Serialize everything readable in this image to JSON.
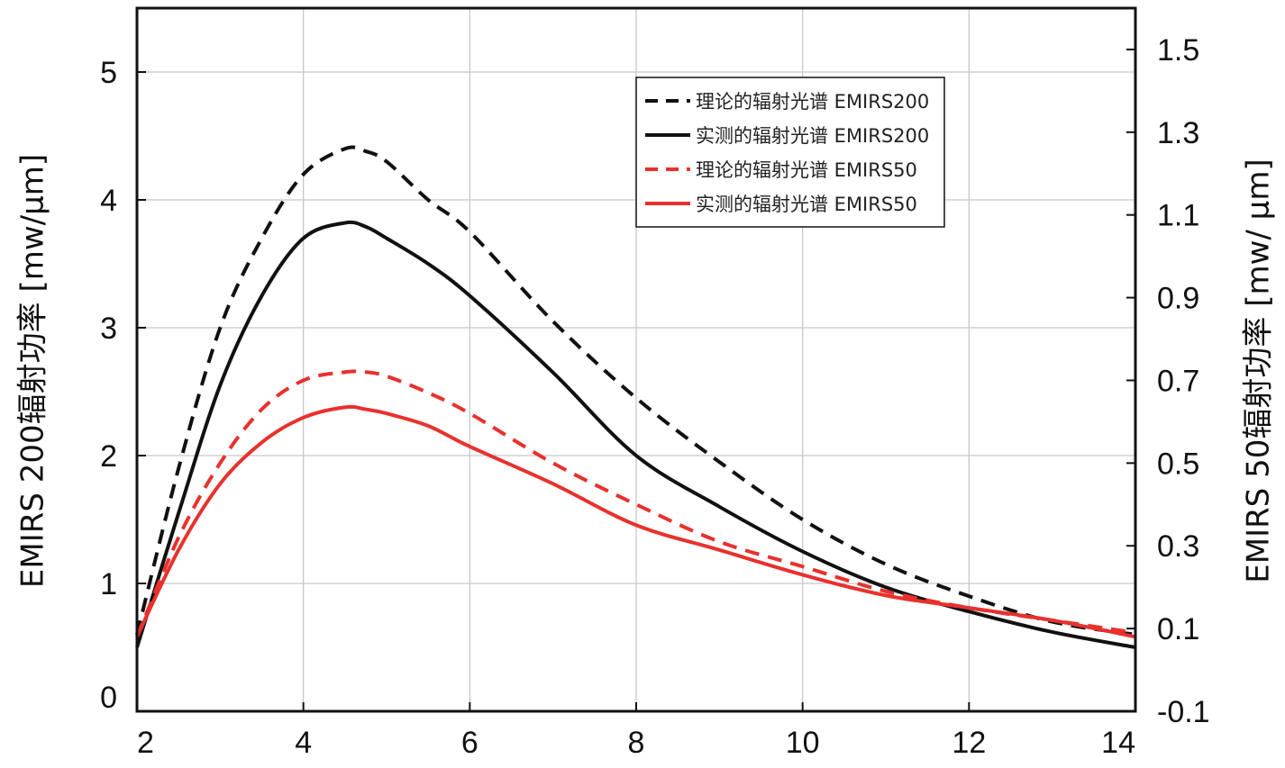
{
  "chart_data": {
    "type": "line",
    "xlabel": "",
    "ylabel_left": "EMIRS 200辐射功率 [mw/μm]",
    "ylabel_right": "EMIRS 50辐射功率 [mw/ μm]",
    "xlim": [
      2,
      14
    ],
    "ylim_left": [
      0,
      5.5
    ],
    "ylim_right": [
      -0.1,
      1.6
    ],
    "x_ticks": [
      "2",
      "4",
      "6",
      "8",
      "10",
      "12",
      "14"
    ],
    "y_ticks_left": [
      "0",
      "1",
      "2",
      "3",
      "4",
      "5"
    ],
    "y_ticks_right": [
      "-0.1",
      "0.1",
      "0.3",
      "0.5",
      "0.7",
      "0.9",
      "1.1",
      "1.3",
      "1.5"
    ],
    "grid": true,
    "legend_position": "top-right",
    "series": [
      {
        "name": "理论的辐射光谱 EMIRS200",
        "color": "#111111",
        "style": "dashed",
        "axis": "left",
        "x": [
          2.0,
          2.5,
          3.0,
          3.5,
          4.0,
          4.5,
          4.75,
          5.0,
          5.5,
          6.0,
          7.0,
          8.0,
          9.0,
          10.0,
          11.0,
          12.0,
          13.0,
          14.0
        ],
        "y": [
          0.6,
          1.9,
          3.0,
          3.7,
          4.2,
          4.4,
          4.38,
          4.3,
          4.0,
          3.75,
          3.05,
          2.45,
          1.95,
          1.5,
          1.15,
          0.9,
          0.7,
          0.6
        ]
      },
      {
        "name": "实测的辐射光谱 EMIRS200",
        "color": "#111111",
        "style": "solid",
        "axis": "left",
        "x": [
          2.0,
          2.5,
          3.0,
          3.5,
          4.0,
          4.5,
          4.75,
          5.0,
          5.5,
          6.0,
          7.0,
          8.0,
          9.0,
          10.0,
          11.0,
          12.0,
          13.0,
          14.0
        ],
        "y": [
          0.5,
          1.55,
          2.55,
          3.25,
          3.7,
          3.82,
          3.79,
          3.7,
          3.5,
          3.25,
          2.65,
          2.0,
          1.6,
          1.25,
          0.97,
          0.78,
          0.62,
          0.5
        ]
      },
      {
        "name": "理论的辐射光谱 EMIRS50",
        "color": "#e8312d",
        "style": "dashed",
        "axis": "right",
        "x": [
          2.0,
          2.5,
          3.0,
          3.5,
          4.0,
          4.5,
          4.75,
          5.0,
          5.5,
          6.0,
          7.0,
          8.0,
          9.0,
          10.0,
          11.0,
          12.0,
          13.0,
          14.0
        ],
        "y": [
          0.08,
          0.32,
          0.5,
          0.63,
          0.7,
          0.72,
          0.72,
          0.71,
          0.67,
          0.62,
          0.5,
          0.4,
          0.31,
          0.25,
          0.19,
          0.15,
          0.12,
          0.09
        ]
      },
      {
        "name": "实测的辐射光谱 EMIRS50",
        "color": "#e8312d",
        "style": "solid",
        "axis": "right",
        "x": [
          2.0,
          2.5,
          3.0,
          3.5,
          4.0,
          4.5,
          4.75,
          5.0,
          5.5,
          6.0,
          7.0,
          8.0,
          9.0,
          10.0,
          11.0,
          12.0,
          13.0,
          14.0
        ],
        "y": [
          0.08,
          0.29,
          0.45,
          0.55,
          0.61,
          0.635,
          0.63,
          0.62,
          0.59,
          0.54,
          0.45,
          0.35,
          0.29,
          0.23,
          0.18,
          0.15,
          0.12,
          0.08
        ]
      }
    ]
  }
}
